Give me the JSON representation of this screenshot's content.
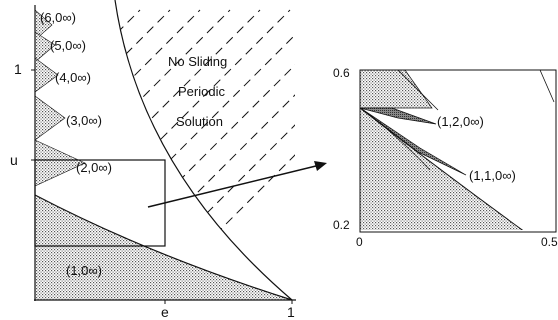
{
  "main_plot": {
    "axis": {
      "x_label": "e",
      "y_label": "u",
      "x_tick_right": "1",
      "y_tick_top": "1"
    },
    "region_labels": [
      {
        "id": "r6",
        "text": "(6,0∞)"
      },
      {
        "id": "r5",
        "text": "(5,0∞)"
      },
      {
        "id": "r4",
        "text": "(4,0∞)"
      },
      {
        "id": "r3",
        "text": "(3,0∞)"
      },
      {
        "id": "r2",
        "text": "(2,0∞)"
      },
      {
        "id": "r1",
        "text": "(1,0∞)"
      }
    ],
    "no_sliding_lines": [
      "No Sliding",
      "Periodic",
      "Solution"
    ]
  },
  "inset_plot": {
    "y_top": "0.6",
    "y_bottom": "0.2",
    "x_left": "0",
    "x_right": "0.5",
    "region_labels": [
      {
        "id": "i120",
        "text": "(1,2,0∞)"
      },
      {
        "id": "i110",
        "text": "(1,1,0∞)"
      }
    ]
  }
}
